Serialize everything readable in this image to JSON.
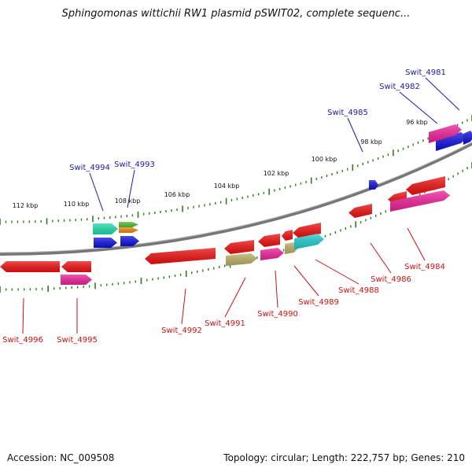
{
  "title": "Sphingomonas wittichii RW1 plasmid pSWIT02, complete sequenc...",
  "footer": {
    "accession": "Accession: NC_009508",
    "summary": "Topology: circular; Length: 222,757 bp; Genes: 210"
  },
  "colors": {
    "backbone": "#888888",
    "tick": "#2e7d1a",
    "forward_label": "#1a1aaa",
    "reverse_label": "#cc1111",
    "red": "#ee1111",
    "magenta": "#ee2299",
    "blue": "#1111dd",
    "teal": "#22ddaa",
    "olive": "#bbb066",
    "cyan": "#22cccc",
    "green": "#55bb33",
    "orange": "#ee8811"
  },
  "scale_labels": [
    "112 kbp",
    "110 kbp",
    "108 kbp",
    "106 kbp",
    "104 kbp",
    "102 kbp",
    "100 kbp",
    "98 kbp",
    "96 kbp"
  ],
  "gene_labels": [
    {
      "text": "Swit_4981",
      "strand": "forward"
    },
    {
      "text": "Swit_4982",
      "strand": "forward"
    },
    {
      "text": "Swit_4985",
      "strand": "forward"
    },
    {
      "text": "Swit_4993",
      "strand": "forward"
    },
    {
      "text": "Swit_4994",
      "strand": "forward"
    },
    {
      "text": "Swit_4984",
      "strand": "reverse"
    },
    {
      "text": "Swit_4986",
      "strand": "reverse"
    },
    {
      "text": "Swit_4988",
      "strand": "reverse"
    },
    {
      "text": "Swit_4989",
      "strand": "reverse"
    },
    {
      "text": "Swit_4990",
      "strand": "reverse"
    },
    {
      "text": "Swit_4991",
      "strand": "reverse"
    },
    {
      "text": "Swit_4992",
      "strand": "reverse"
    },
    {
      "text": "Swit_4995",
      "strand": "reverse"
    },
    {
      "text": "Swit_4996",
      "strand": "reverse"
    }
  ]
}
